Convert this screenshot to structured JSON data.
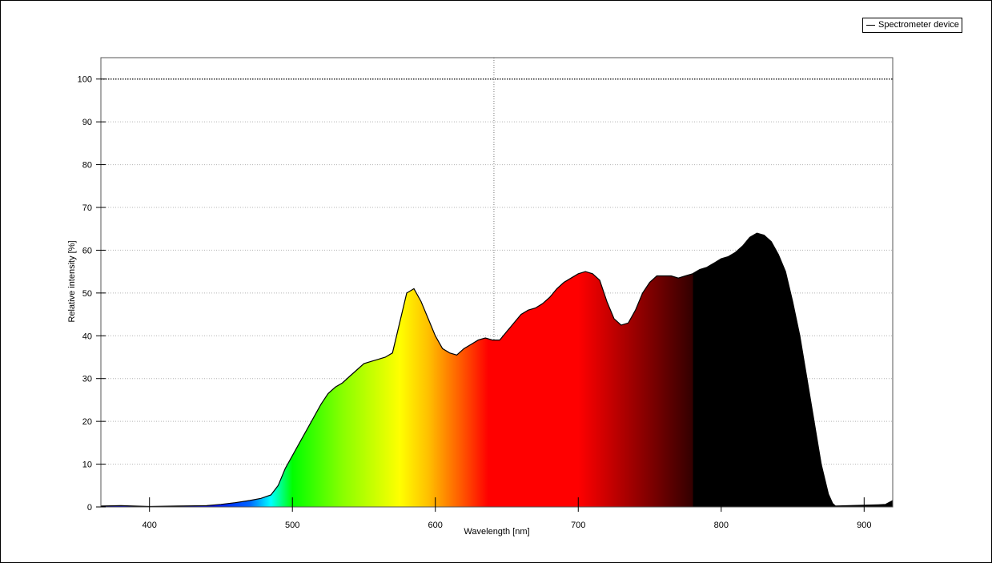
{
  "chart_data": {
    "type": "area",
    "title": "",
    "xlabel": "Wavelength [nm]",
    "ylabel": "Relative intensity [%]",
    "xlim": [
      366,
      920
    ],
    "ylim": [
      0,
      105
    ],
    "x_ticks": [
      400,
      500,
      600,
      700,
      800,
      900
    ],
    "y_ticks": [
      0,
      10,
      20,
      30,
      40,
      50,
      60,
      70,
      80,
      90,
      100
    ],
    "x_tick_labels": [
      "400",
      "500",
      "600",
      "700",
      "800",
      "900"
    ],
    "y_tick_labels": [
      "0",
      "10",
      "20",
      "30",
      "40",
      "50",
      "60",
      "70",
      "80",
      "90",
      "100"
    ],
    "grid": true,
    "reference_lines": {
      "y": 100,
      "x": 641
    },
    "legend": {
      "position": "top-right"
    },
    "series": [
      {
        "name": "Spectrometer device",
        "color": "#000000",
        "fill": "visible-spectrum-gradient",
        "x": [
          366,
          380,
          400,
          420,
          440,
          450,
          460,
          470,
          478,
          485,
          490,
          495,
          500,
          505,
          510,
          515,
          520,
          525,
          530,
          535,
          540,
          545,
          550,
          555,
          560,
          565,
          570,
          575,
          580,
          585,
          590,
          595,
          600,
          605,
          610,
          615,
          620,
          625,
          630,
          635,
          640,
          645,
          650,
          655,
          660,
          665,
          670,
          675,
          680,
          685,
          690,
          695,
          700,
          705,
          710,
          715,
          720,
          725,
          730,
          735,
          740,
          745,
          750,
          755,
          760,
          765,
          770,
          775,
          780,
          785,
          790,
          795,
          800,
          805,
          810,
          815,
          820,
          825,
          830,
          835,
          840,
          845,
          850,
          855,
          860,
          865,
          870,
          875,
          878,
          880,
          890,
          900,
          910,
          915,
          920
        ],
        "y": [
          0.2,
          0.3,
          0.1,
          0.2,
          0.3,
          0.6,
          1.0,
          1.5,
          2.0,
          2.8,
          5,
          9,
          12,
          15,
          18,
          21,
          24,
          26.5,
          28,
          29,
          30.5,
          32,
          33.5,
          34,
          34.5,
          35,
          36,
          43,
          50,
          51,
          48,
          44,
          40,
          37,
          36,
          35.5,
          37,
          38,
          39,
          39.5,
          39,
          39,
          41,
          43,
          45,
          46,
          46.5,
          47.5,
          49,
          51,
          52.5,
          53.5,
          54.5,
          55,
          54.5,
          53,
          48,
          44,
          42.5,
          43,
          46,
          50,
          52.5,
          54,
          54,
          54,
          53.5,
          54,
          54.5,
          55.5,
          56,
          57,
          58,
          58.5,
          59.5,
          61,
          63,
          64,
          63.5,
          62,
          59,
          55,
          48,
          40,
          30,
          20,
          10,
          3,
          0.8,
          0.2,
          0.3,
          0.4,
          0.5,
          0.6,
          1.5
        ]
      }
    ]
  }
}
